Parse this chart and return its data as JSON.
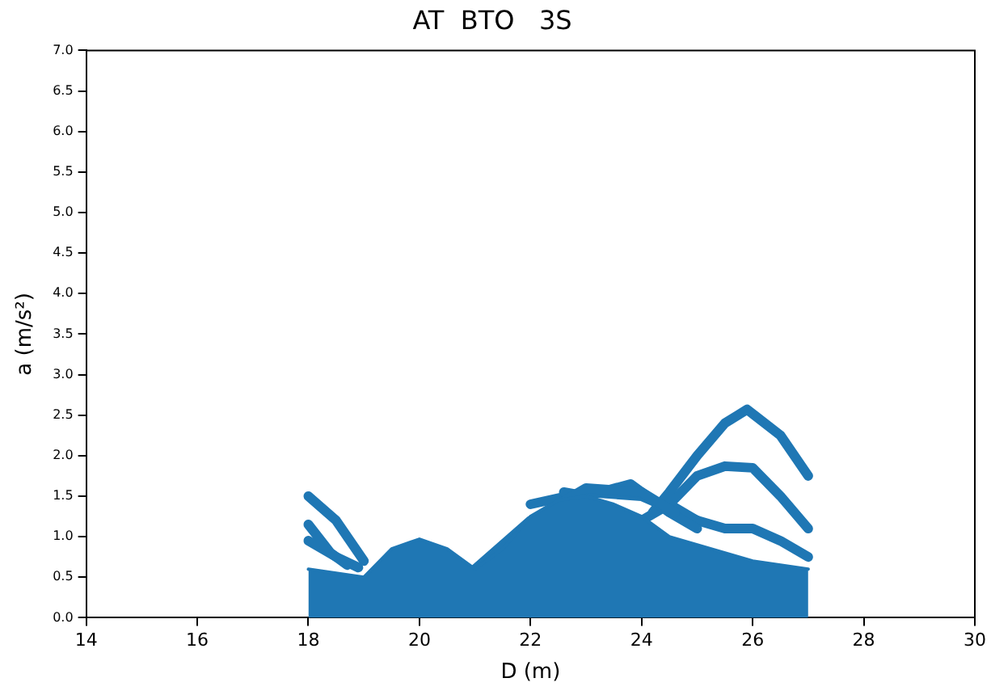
{
  "chart_data": {
    "type": "line",
    "title": "AT  BTO   3S",
    "xlabel": "D (m)",
    "ylabel": "a (m/s²)",
    "xlim": [
      14,
      30
    ],
    "xticks": [
      14,
      16,
      18,
      20,
      22,
      24,
      26,
      28,
      30
    ],
    "ylim": [
      0,
      7
    ],
    "yticks": [
      {
        "value": 0,
        "label": "0.0"
      },
      {
        "value": 0.5,
        "label": "0.5"
      },
      {
        "value": 1,
        "label": "1.0"
      },
      {
        "value": 1.5,
        "label": "1.5"
      },
      {
        "value": 2,
        "label": "2.0"
      },
      {
        "value": 2.5,
        "label": "2.5"
      },
      {
        "value": 3,
        "label": "3.0"
      },
      {
        "value": 3.5,
        "label": "3.5"
      },
      {
        "value": 4,
        "label": "4.0"
      },
      {
        "value": 4.5,
        "label": "4.5"
      },
      {
        "value": 5,
        "label": "5.0"
      },
      {
        "value": 5.5,
        "label": "5.5"
      },
      {
        "value": 6,
        "label": "6.0"
      },
      {
        "value": 6.5,
        "label": "6.5"
      },
      {
        "value": 7,
        "label": "7.0"
      }
    ],
    "grid": false,
    "legend": false,
    "marker": "none",
    "line_style": "solid",
    "series": [
      {
        "type": "area",
        "color": "#1f77b4",
        "x": [
          18,
          18.5,
          19,
          19.5,
          20,
          20.5,
          21,
          21.5,
          22,
          22.5,
          23,
          23.5,
          24,
          24.5,
          25,
          25.5,
          26,
          26.5,
          27
        ],
        "values": [
          0.6,
          0.55,
          0.5,
          0.85,
          0.97,
          0.85,
          0.6,
          0.85,
          1.25,
          1.45,
          1.5,
          1.4,
          1.25,
          1.0,
          0.9,
          0.8,
          0.7,
          0.65,
          0.6
        ]
      },
      {
        "color": "#1f77b4",
        "x": [
          18,
          18.5,
          19
        ],
        "values": [
          1.5,
          1.2,
          0.7
        ]
      },
      {
        "color": "#1f77b4",
        "x": [
          18,
          18.4,
          18.7
        ],
        "values": [
          1.15,
          0.8,
          0.65
        ]
      },
      {
        "color": "#1f77b4",
        "x": [
          18,
          18.5,
          18.9
        ],
        "values": [
          0.95,
          0.75,
          0.62
        ]
      },
      {
        "color": "#1f77b4",
        "x": [
          21,
          22,
          23,
          24,
          24.6
        ],
        "values": [
          0.6,
          1.2,
          1.6,
          1.55,
          1.3
        ]
      },
      {
        "color": "#1f77b4",
        "x": [
          22.6,
          23,
          23.8,
          24.5,
          25
        ],
        "values": [
          1.55,
          1.5,
          1.65,
          1.3,
          1.1
        ]
      },
      {
        "color": "#1f77b4",
        "x": [
          24.2,
          24.5,
          25,
          25.5,
          25.9,
          26.5,
          27
        ],
        "values": [
          1.3,
          1.55,
          2.0,
          2.4,
          2.57,
          2.25,
          1.75
        ]
      },
      {
        "color": "#1f77b4",
        "x": [
          24.5,
          25,
          25.5,
          26,
          26.5,
          27
        ],
        "values": [
          1.4,
          1.75,
          1.87,
          1.85,
          1.5,
          1.1
        ]
      },
      {
        "color": "#1f77b4",
        "x": [
          24,
          24.5,
          25,
          25.5,
          26,
          26.5,
          27
        ],
        "values": [
          1.2,
          1.4,
          1.2,
          1.1,
          1.1,
          0.95,
          0.75
        ]
      },
      {
        "color": "#1f77b4",
        "x": [
          22,
          23,
          24,
          25
        ],
        "values": [
          1.4,
          1.55,
          1.5,
          1.2
        ]
      }
    ]
  }
}
